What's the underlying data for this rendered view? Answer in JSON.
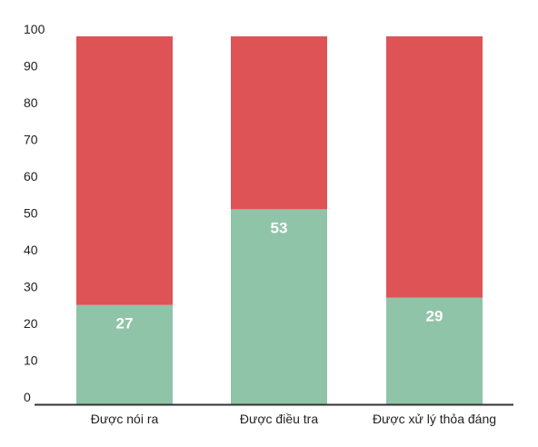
{
  "chart_data": {
    "type": "bar",
    "stacked": true,
    "categories": [
      "Được nói ra",
      "Được điều tra",
      "Được xử lý thỏa đáng"
    ],
    "series": [
      {
        "values": [
          27,
          53,
          29
        ],
        "color": "#8fc4a8"
      },
      {
        "values": [
          73,
          47,
          71
        ],
        "color": "#de5356"
      }
    ],
    "data_labels": [
      "27",
      "53",
      "29"
    ],
    "yticks": [
      0,
      10,
      20,
      30,
      40,
      50,
      60,
      70,
      80,
      90,
      100
    ],
    "ylim": [
      0,
      100
    ],
    "grid": false,
    "axis_color": "#333333"
  }
}
